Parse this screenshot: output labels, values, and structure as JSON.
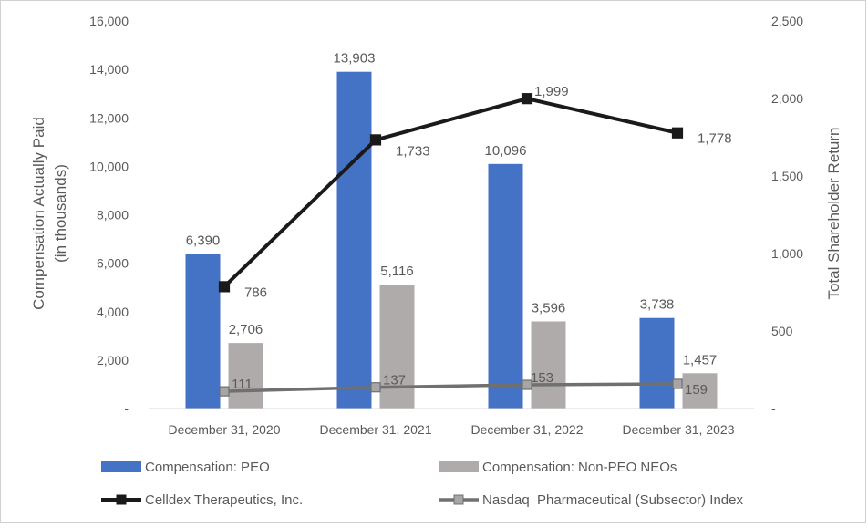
{
  "chart_data": {
    "type": "bar",
    "categories": [
      "December 31, 2020",
      "December 31, 2021",
      "December 31, 2022",
      "December 31, 2023"
    ],
    "series": [
      {
        "name": "Compensation: PEO",
        "kind": "bar",
        "axis": "left",
        "color": "#4472C4",
        "values": [
          6390,
          13903,
          10096,
          3738
        ],
        "labels": [
          "6,390",
          "13,903",
          "10,096",
          "3,738"
        ]
      },
      {
        "name": "Compensation: Non-PEO NEOs",
        "kind": "bar",
        "axis": "left",
        "color": "#AFABAB",
        "values": [
          2706,
          5116,
          3596,
          1457
        ],
        "labels": [
          "2,706",
          "5,116",
          "3,596",
          "1,457"
        ]
      },
      {
        "name": "Celldex Therapeutics, Inc.",
        "kind": "line",
        "axis": "right",
        "color": "#1a1a1a",
        "values": [
          786,
          1733,
          1999,
          1778
        ],
        "labels": [
          "786",
          "1,733",
          "1,999",
          "1,778"
        ]
      },
      {
        "name": "Nasdaq  Pharmaceutical (Subsector) Index",
        "kind": "line",
        "axis": "right",
        "color": "#707070",
        "values": [
          111,
          137,
          153,
          159
        ],
        "labels": [
          "111",
          "137",
          "153",
          "159"
        ]
      }
    ],
    "ylabel": [
      "Compensation Actually Paid",
      "(in thousands)"
    ],
    "y2label": "Total Shareholder Return",
    "ylim": [
      0,
      16000
    ],
    "y2lim": [
      0,
      2500
    ],
    "yticks": [
      "-",
      "2,000",
      "4,000",
      "6,000",
      "8,000",
      "10,000",
      "12,000",
      "14,000",
      "16,000"
    ],
    "y2ticks": [
      "-",
      "500",
      "1,000",
      "1,500",
      "2,000",
      "2,500"
    ],
    "grid": false,
    "legend_position": "bottom"
  }
}
